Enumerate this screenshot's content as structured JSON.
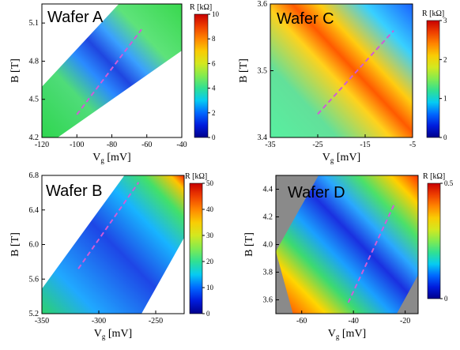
{
  "chart_data": [
    {
      "type": "heatmap",
      "title": "Wafer A",
      "xlabel_main": "V",
      "xlabel_sub": "g",
      "xlabel_unit": " [mV]",
      "ylabel": "B [T]",
      "xticks": [
        -120,
        -100,
        -80,
        -60,
        -40
      ],
      "yticks": [
        4.2,
        4.5,
        4.8,
        5.1
      ],
      "xtick_labels": [
        "-120",
        "-100",
        "-80",
        "-60",
        "-40"
      ],
      "ytick_labels": [
        "4.2",
        "4.5",
        "4.8",
        "5.1"
      ],
      "xlim": [
        -120,
        -40
      ],
      "ylim": [
        4.2,
        5.25
      ],
      "colorbar_label": "R [kΩ]",
      "colorbar_range": [
        0,
        10
      ],
      "colorbar_ticks": [
        "0",
        "2",
        "4",
        "6",
        "8",
        "10"
      ],
      "dashed_line": [
        [
          -100,
          4.38
        ],
        [
          -63,
          5.05
        ]
      ]
    },
    {
      "type": "heatmap",
      "title": "Wafer C",
      "xlabel_main": "V",
      "xlabel_sub": "g",
      "xlabel_unit": " [mV]",
      "ylabel": "B [T]",
      "xticks": [
        -35,
        -25,
        -15,
        -5
      ],
      "yticks": [
        3.4,
        3.5,
        3.6
      ],
      "xtick_labels": [
        "-35",
        "-25",
        "-15",
        "-5"
      ],
      "ytick_labels": [
        "3.4",
        "3.5",
        "3.6"
      ],
      "xlim": [
        -35,
        -5
      ],
      "ylim": [
        3.4,
        3.6
      ],
      "colorbar_label": "R [kΩ]",
      "colorbar_range": [
        0,
        3
      ],
      "colorbar_ticks": [
        "0",
        "1",
        "2",
        "3"
      ],
      "dashed_line": [
        [
          -25,
          3.435
        ],
        [
          -9,
          3.56
        ]
      ]
    },
    {
      "type": "heatmap",
      "title": "Wafer B",
      "xlabel_main": "V",
      "xlabel_sub": "g",
      "xlabel_unit": " [mV]",
      "ylabel": "B [T]",
      "xticks": [
        -350,
        -300,
        -250
      ],
      "yticks": [
        5.2,
        5.6,
        6.0,
        6.4,
        6.8
      ],
      "xtick_labels": [
        "-350",
        "-300",
        "-250"
      ],
      "ytick_labels": [
        "5.2",
        "5.6",
        "6.0",
        "6.4",
        "6.8"
      ],
      "xlim": [
        -350,
        -225
      ],
      "ylim": [
        5.2,
        6.8
      ],
      "colorbar_label": "R [kΩ]",
      "colorbar_range": [
        0,
        50
      ],
      "colorbar_ticks": [
        "0",
        "10",
        "20",
        "30",
        "40",
        "50"
      ],
      "dashed_line": [
        [
          -318,
          5.72
        ],
        [
          -265,
          6.72
        ]
      ]
    },
    {
      "type": "heatmap",
      "title": "Wafer D",
      "xlabel_main": "V",
      "xlabel_sub": "g",
      "xlabel_unit": " [mV]",
      "ylabel": "B [T]",
      "xticks": [
        -60,
        -40,
        -20
      ],
      "yticks": [
        3.6,
        3.8,
        4.0,
        4.2,
        4.4
      ],
      "xtick_labels": [
        "-60",
        "-40",
        "-20"
      ],
      "ytick_labels": [
        "3.6",
        "3.8",
        "4.0",
        "4.2",
        "4.4"
      ],
      "xlim": [
        -70,
        -15
      ],
      "ylim": [
        3.5,
        4.5
      ],
      "colorbar_label": "R [kΩ]",
      "colorbar_range": [
        0,
        0.5
      ],
      "colorbar_ticks": [
        "0",
        "0.5"
      ],
      "dashed_line": [
        [
          -42,
          3.58
        ],
        [
          -24,
          4.3
        ]
      ]
    }
  ]
}
